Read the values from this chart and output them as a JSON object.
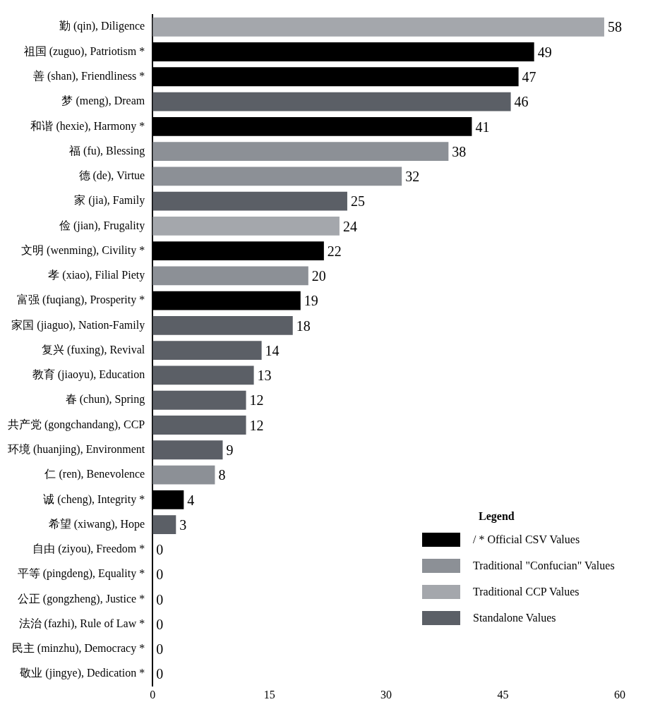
{
  "chart_data": {
    "type": "bar",
    "orientation": "horizontal",
    "stacked": true,
    "data_labels": true,
    "grid": false,
    "legend": "bottom right",
    "legend_title": "Legend",
    "categories": [
      "勤 (qin), Diligence",
      "祖国 (zuguo), Patriotism *",
      "善 (shan), Friendliness *",
      "梦 (meng), Dream",
      "和谐 (hexie), Harmony *",
      "福 (fu), Blessing",
      "德 (de), Virtue",
      "家 (jia), Family",
      "俭 (jian), Frugality",
      "文明 (wenming), Civility *",
      "孝 (xiao), Filial Piety",
      "富强 (fuqiang), Prosperity *",
      "家国 (jiaguo), Nation-Family",
      "复兴 (fuxing), Revival",
      "教育 (jiaoyu), Education",
      "春 (chun), Spring",
      "共产党 (gongchandang), CCP",
      "环境 (huanjing), Environment",
      "仁 (ren), Benevolence",
      "诚 (cheng), Integrity *",
      "希望 (xiwang), Hope",
      "自由 (ziyou), Freedom *",
      "平等 (pingdeng), Equality *",
      "公正 (gongzheng), Justice *",
      "法治 (fazhi), Rule of Law *",
      "民主 (minzhu), Democracy *",
      "敬业 (jingye), Dedication *"
    ],
    "series": [
      {
        "name": "/ * Official CSV Values",
        "color": "#000000",
        "values": [
          null,
          49,
          47,
          null,
          41,
          null,
          null,
          null,
          null,
          22,
          null,
          19,
          null,
          null,
          null,
          null,
          null,
          null,
          null,
          4,
          null,
          0,
          0,
          0,
          0,
          0,
          0
        ]
      },
      {
        "name": "Traditional \"Confucian\" Values",
        "color": "#8c9096",
        "values": [
          null,
          null,
          null,
          null,
          null,
          38,
          32,
          null,
          null,
          null,
          20,
          null,
          null,
          null,
          null,
          null,
          null,
          null,
          8,
          null,
          null,
          null,
          null,
          null,
          null,
          null,
          null
        ]
      },
      {
        "name": "Traditional CCP Values",
        "color": "#a4a7ac",
        "values": [
          58,
          null,
          null,
          null,
          null,
          null,
          null,
          null,
          24,
          null,
          null,
          null,
          null,
          null,
          null,
          null,
          null,
          null,
          null,
          null,
          null,
          null,
          null,
          null,
          null,
          null,
          null
        ]
      },
      {
        "name": "Standalone Values",
        "color": "#5b5f66",
        "values": [
          null,
          null,
          null,
          46,
          null,
          null,
          null,
          25,
          null,
          null,
          null,
          null,
          18,
          14,
          13,
          12,
          12,
          9,
          null,
          null,
          3,
          null,
          null,
          null,
          null,
          null,
          null
        ]
      }
    ],
    "xlim": [
      0,
      60
    ],
    "xticks": [
      0,
      15,
      30,
      45,
      60
    ]
  }
}
